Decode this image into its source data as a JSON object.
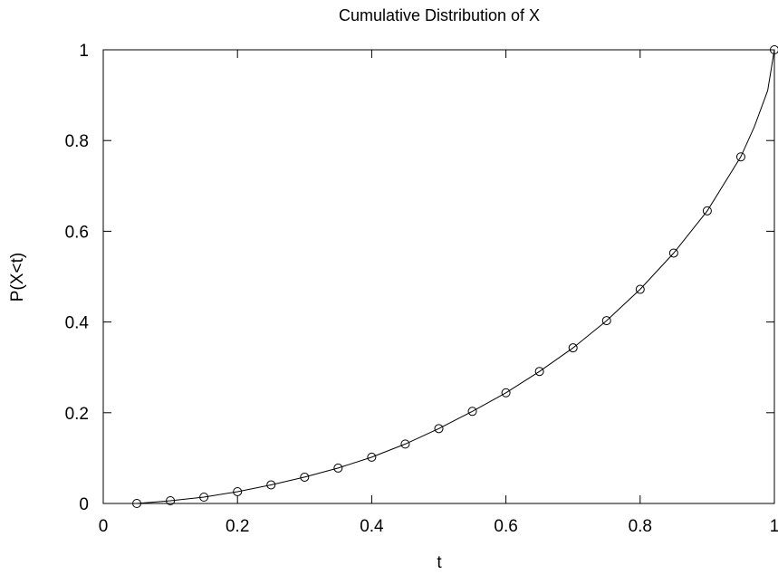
{
  "chart_data": {
    "type": "line",
    "title": "Cumulative Distribution of X",
    "xlabel": "t",
    "ylabel": "P(X<t)",
    "xlim": [
      0,
      1
    ],
    "ylim": [
      0,
      1
    ],
    "grid": false,
    "x_ticks": [
      {
        "value": 0,
        "label": "0"
      },
      {
        "value": 0.2,
        "label": "0.2"
      },
      {
        "value": 0.4,
        "label": "0.4"
      },
      {
        "value": 0.6,
        "label": "0.6"
      },
      {
        "value": 0.8,
        "label": "0.8"
      },
      {
        "value": 1,
        "label": "1"
      }
    ],
    "y_ticks": [
      {
        "value": 0,
        "label": "0"
      },
      {
        "value": 0.2,
        "label": "0.2"
      },
      {
        "value": 0.4,
        "label": "0.4"
      },
      {
        "value": 0.6,
        "label": "0.6"
      },
      {
        "value": 0.8,
        "label": "0.8"
      },
      {
        "value": 1,
        "label": "1"
      }
    ],
    "series": [
      {
        "style": "line",
        "color": "#000000",
        "x": [
          0.05,
          0.1,
          0.15,
          0.2,
          0.25,
          0.3,
          0.35,
          0.4,
          0.45,
          0.5,
          0.55,
          0.6,
          0.65,
          0.7,
          0.75,
          0.8,
          0.85,
          0.9,
          0.95,
          0.97,
          0.99,
          1.0
        ],
        "y": [
          0.0,
          0.006,
          0.014,
          0.026,
          0.041,
          0.058,
          0.078,
          0.102,
          0.131,
          0.165,
          0.203,
          0.244,
          0.291,
          0.343,
          0.403,
          0.472,
          0.552,
          0.645,
          0.764,
          0.83,
          0.91,
          1.0
        ]
      },
      {
        "style": "markers",
        "marker": "open-circle",
        "color": "#000000",
        "x": [
          0.05,
          0.1,
          0.15,
          0.2,
          0.25,
          0.3,
          0.35,
          0.4,
          0.45,
          0.5,
          0.55,
          0.6,
          0.65,
          0.7,
          0.75,
          0.8,
          0.85,
          0.9,
          0.95,
          1.0
        ],
        "y": [
          0.0,
          0.006,
          0.014,
          0.026,
          0.041,
          0.058,
          0.078,
          0.102,
          0.131,
          0.165,
          0.203,
          0.244,
          0.291,
          0.343,
          0.403,
          0.472,
          0.552,
          0.645,
          0.764,
          1.0
        ]
      }
    ]
  }
}
